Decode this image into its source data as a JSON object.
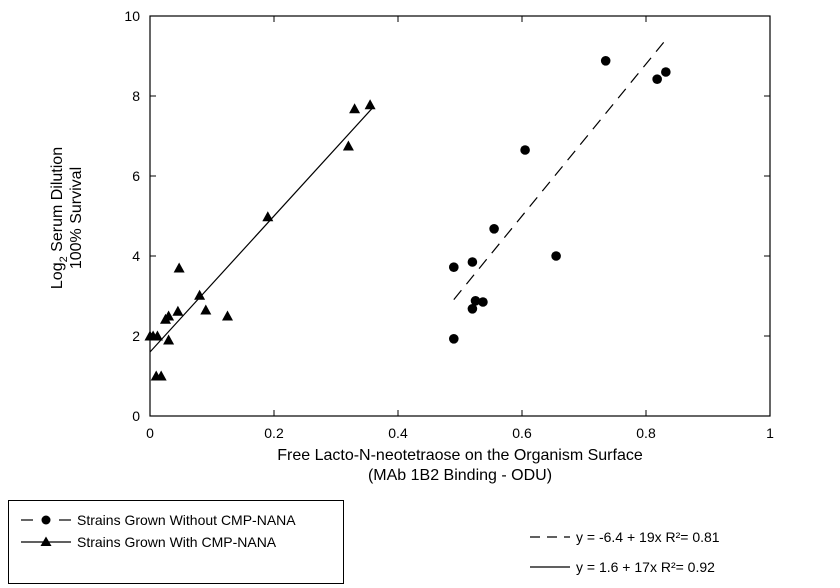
{
  "chart_data": {
    "type": "scatter",
    "xlabel_line1": "Free Lacto-N-neotetraose on the Organism Surface",
    "xlabel_line2": "(MAb 1B2 Binding - ODU)",
    "ylabel_prefix": "Log",
    "ylabel_sub": "2",
    "ylabel_rest": " Serum Dilution",
    "ylabel_line2": "100% Survival",
    "xlim": [
      0,
      1
    ],
    "ylim": [
      0,
      10
    ],
    "x_ticks": [
      0,
      0.2,
      0.4,
      0.6,
      0.8,
      1
    ],
    "x_tick_labels": [
      "0",
      "0.2",
      "0.4",
      "0.6",
      "0.8",
      "1"
    ],
    "y_ticks": [
      0,
      2,
      4,
      6,
      8,
      10
    ],
    "y_tick_labels": [
      "0",
      "2",
      "4",
      "6",
      "8",
      "10"
    ],
    "grid": false,
    "legend_position": "bottom-left",
    "series": [
      {
        "name": "Strains Grown Without CMP-NANA",
        "marker": "circle",
        "line": "dashed",
        "points": [
          [
            0.49,
            3.72
          ],
          [
            0.49,
            1.93
          ],
          [
            0.52,
            3.85
          ],
          [
            0.52,
            2.68
          ],
          [
            0.525,
            2.88
          ],
          [
            0.537,
            2.85
          ],
          [
            0.555,
            4.68
          ],
          [
            0.605,
            6.65
          ],
          [
            0.655,
            4.0
          ],
          [
            0.735,
            8.88
          ],
          [
            0.818,
            8.42
          ],
          [
            0.832,
            8.6
          ]
        ],
        "fit": {
          "intercept": -6.4,
          "slope": 19,
          "x_range": [
            0.49,
            0.83
          ]
        }
      },
      {
        "name": "Strains Grown With CMP-NANA",
        "marker": "triangle",
        "line": "solid",
        "points": [
          [
            0.0,
            2.0
          ],
          [
            0.005,
            2.0
          ],
          [
            0.012,
            2.0
          ],
          [
            0.01,
            1.0
          ],
          [
            0.018,
            1.0
          ],
          [
            0.025,
            2.42
          ],
          [
            0.03,
            2.5
          ],
          [
            0.03,
            1.9
          ],
          [
            0.045,
            2.62
          ],
          [
            0.047,
            3.7
          ],
          [
            0.08,
            3.02
          ],
          [
            0.09,
            2.65
          ],
          [
            0.125,
            2.5
          ],
          [
            0.19,
            4.98
          ],
          [
            0.32,
            6.75
          ],
          [
            0.33,
            7.68
          ],
          [
            0.355,
            7.78
          ]
        ],
        "fit": {
          "intercept": 1.6,
          "slope": 17,
          "x_range": [
            0.0,
            0.36
          ]
        }
      }
    ],
    "fit_labels": [
      "y = -6.4 + 19x R²= 0.81",
      "y = 1.6 + 17x R²= 0.92"
    ]
  }
}
